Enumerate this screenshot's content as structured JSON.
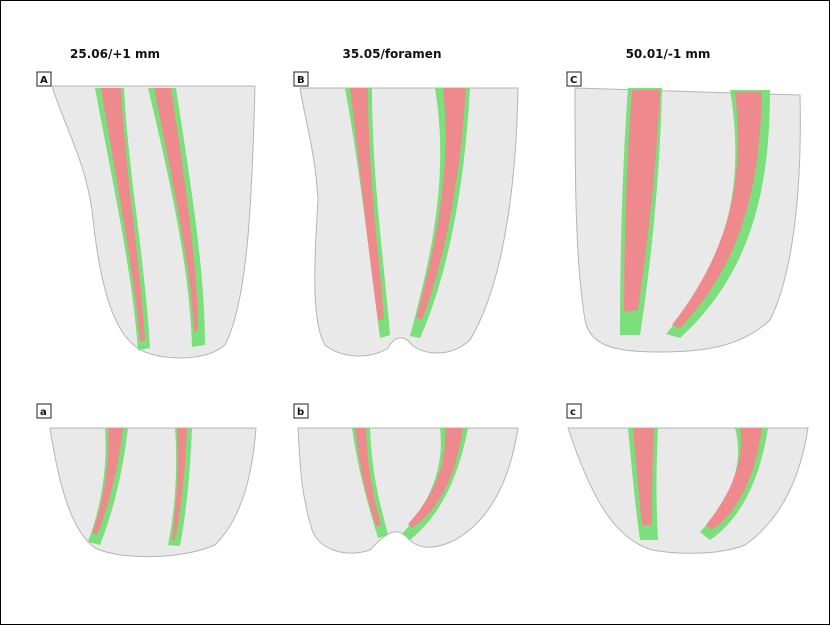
{
  "column_titles": [
    "25.06/+1 mm",
    "35.05/foramen",
    "50.01/-1 mm"
  ],
  "panel_labels": {
    "upper": [
      "A",
      "B",
      "C"
    ],
    "lower": [
      "a",
      "b",
      "c"
    ]
  }
}
